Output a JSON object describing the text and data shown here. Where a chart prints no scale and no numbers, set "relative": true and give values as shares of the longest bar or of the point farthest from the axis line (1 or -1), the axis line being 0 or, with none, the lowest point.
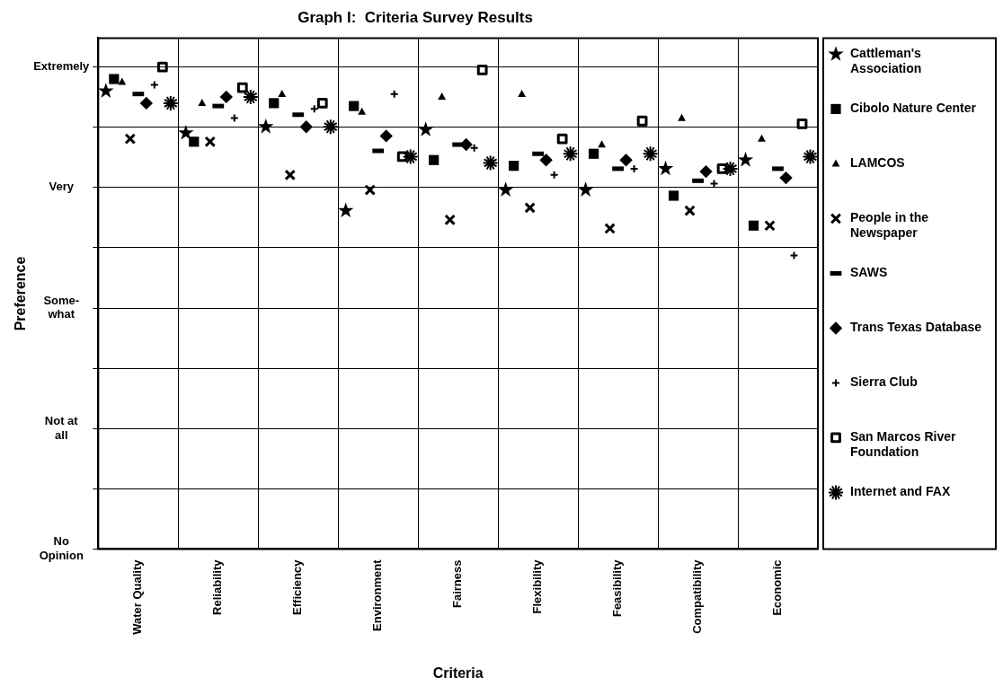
{
  "chart_data": {
    "type": "scatter",
    "title": "Graph I:  Criteria Survey Results",
    "xlabel": "Criteria",
    "ylabel": "Preference",
    "categories": [
      "Water Quality",
      "Reliability",
      "Efficiency",
      "Environment",
      "Fairness",
      "Flexibility",
      "Feasibility",
      "Compatibility",
      "Economic"
    ],
    "relative": true,
    "annotations": [
      "Extremely",
      "Very",
      "Some-what",
      "Not at all",
      "No Opinion"
    ],
    "grid": true,
    "legend": "right",
    "series": [
      {
        "name": "Cattleman's Association",
        "color": "#000000",
        "marker": "star",
        "values": [
          0.95,
          0.863,
          0.876,
          0.702,
          0.87,
          0.745,
          0.745,
          0.789,
          0.807
        ]
      },
      {
        "name": "Cibolo Nature Center",
        "color": "#000000",
        "marker": "square",
        "values": [
          0.975,
          0.845,
          0.925,
          0.919,
          0.807,
          0.795,
          0.82,
          0.733,
          0.671
        ]
      },
      {
        "name": "LAMCOS",
        "color": "#000000",
        "marker": "triangle",
        "values": [
          0.969,
          0.925,
          0.944,
          0.907,
          0.938,
          0.944,
          0.839,
          0.894,
          0.851
        ]
      },
      {
        "name": "People in the Newspaper",
        "color": "#000000",
        "marker": "cross",
        "values": [
          0.851,
          0.845,
          0.776,
          0.745,
          0.683,
          0.708,
          0.665,
          0.702,
          0.671
        ]
      },
      {
        "name": "SAWS",
        "color": "#000000",
        "values": [
          0.944,
          0.919,
          0.901,
          0.826,
          0.839,
          0.82,
          0.789,
          0.764,
          0.789
        ]
      },
      {
        "name": "Trans Texas Database",
        "color": "#000000",
        "marker": "diamond",
        "values": [
          0.925,
          0.938,
          0.876,
          0.857,
          0.839,
          0.807,
          0.807,
          0.783,
          0.77
        ]
      },
      {
        "name": "Sierra Club",
        "color": "#000000",
        "marker": "plus",
        "values": [
          0.963,
          0.894,
          0.913,
          0.944,
          0.832,
          0.776,
          0.789,
          0.758,
          0.609
        ]
      },
      {
        "name": "San Marcos River Foundation",
        "color": "#000000",
        "values": [
          1,
          0.957,
          0.925,
          0.814,
          0.994,
          0.851,
          0.888,
          0.789,
          0.882
        ]
      },
      {
        "name": "Internet and FAX",
        "color": "#000000",
        "values": [
          0.925,
          0.938,
          0.876,
          0.814,
          0.801,
          0.82,
          0.82,
          0.789,
          0.814
        ]
      }
    ]
  }
}
